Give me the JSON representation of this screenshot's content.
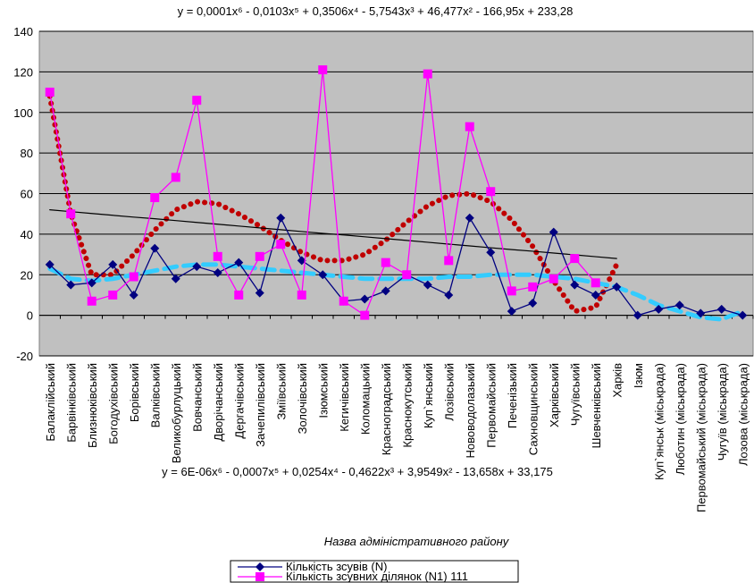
{
  "chart_data": {
    "type": "line",
    "equations": [
      "y = 0,0001x⁶ - 0,0103x⁵ + 0,3506x⁴ - 5,7543x³ + 46,477x² - 166,95x + 233,28",
      "y = 6E-06x⁶ - 0,0007x⁵ + 0,0254x⁴ - 0,4622x³ + 3,9549x² - 13,658x + 33,175"
    ],
    "x_label": "Назва адміністративного району",
    "categories": [
      "Балаклійський",
      "Барвінківський",
      "Близнюківський",
      "Богодухівський",
      "Борівський",
      "Валківський",
      "Великобурлуцький",
      "Вовчанський",
      "Дворічанський",
      "Дергачівський",
      "Зачепилівський",
      "Зміївський",
      "Золочівський",
      "Ізюмський",
      "Кегичівський",
      "Коломацький",
      "Красноградський",
      "Краснокутський",
      "Куп`янський",
      "Лозівський",
      "Нововодолазький",
      "Первомайський",
      "Печенізький",
      "Сахновщинський",
      "Харківський",
      "Чугуївський",
      "Шевченківський",
      "Харків",
      "Ізюм",
      "Куп`янськ  (міськрада)",
      "Люботин (міськрада)",
      "Первомайський (міськрада)",
      "Чугуїв (міськрада)",
      "Лозова  (міськрада)"
    ],
    "series": [
      {
        "name": "Кількість зсувів (N)",
        "color": "#000080",
        "marker": "diamond",
        "values": [
          25,
          15,
          16,
          25,
          10,
          33,
          18,
          24,
          21,
          26,
          11,
          48,
          27,
          20,
          7,
          8,
          12,
          20,
          15,
          10,
          48,
          31,
          2,
          6,
          41,
          15,
          10,
          14,
          0,
          3,
          5,
          1,
          3,
          0
        ]
      },
      {
        "name": "Кількість зсувних ділянок (N1) 111",
        "color": "#ff00ff",
        "marker": "square",
        "values": [
          110,
          50,
          7,
          10,
          19,
          58,
          68,
          106,
          29,
          10,
          29,
          35,
          10,
          121,
          7,
          0,
          26,
          20,
          119,
          27,
          93,
          61,
          12,
          14,
          18,
          28,
          16,
          null,
          null,
          null,
          null,
          null,
          null,
          null
        ]
      }
    ],
    "trendlines": [
      {
        "color": "#c00000",
        "style": "dotted",
        "values": [
          108,
          50,
          20,
          20,
          30,
          42,
          52,
          56,
          55,
          50,
          44,
          37,
          31,
          27,
          27,
          30,
          37,
          46,
          54,
          59,
          60,
          56,
          47,
          34,
          17,
          2,
          4,
          25,
          null,
          null,
          null,
          null,
          null,
          null
        ]
      },
      {
        "color": "#33ccff",
        "style": "dashed",
        "values": [
          23,
          18,
          17,
          18,
          20,
          22,
          24,
          25,
          25,
          24,
          23,
          22,
          21,
          20,
          19,
          18,
          18,
          18,
          18,
          19,
          19,
          20,
          20,
          20,
          19,
          18,
          16,
          14,
          10,
          5,
          2,
          -1,
          -2,
          2
        ]
      },
      {
        "color": "#000000",
        "style": "solid",
        "values": [
          52,
          51.1,
          50.2,
          49.3,
          48.4,
          47.6,
          46.7,
          45.8,
          44.9,
          44,
          43.1,
          42.2,
          41.3,
          40.4,
          39.6,
          38.7,
          37.8,
          36.9,
          36,
          35.1,
          34.2,
          33.3,
          32.4,
          31.6,
          30.7,
          29.8,
          28.9,
          28,
          null,
          null,
          null,
          null,
          null,
          null
        ]
      }
    ],
    "ylim": [
      -20,
      140
    ],
    "yticks": [
      -20,
      0,
      20,
      40,
      60,
      80,
      100,
      120,
      140
    ],
    "grid": true,
    "plot_color": "#c0c0c0"
  }
}
